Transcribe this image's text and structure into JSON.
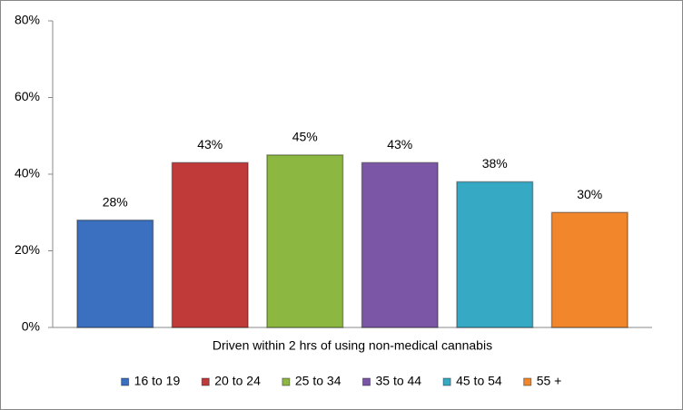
{
  "chart_data": {
    "type": "bar",
    "categories": [
      "Driven within 2 hrs of using non-medical cannabis"
    ],
    "series": [
      {
        "name": "16 to 19",
        "color": "#3b6fc0",
        "values": [
          28
        ],
        "value_labels": [
          "28%"
        ]
      },
      {
        "name": "20 to 24",
        "color": "#c13a3a",
        "values": [
          43
        ],
        "value_labels": [
          "43%"
        ]
      },
      {
        "name": "25 to 34",
        "color": "#8cb740",
        "values": [
          45
        ],
        "value_labels": [
          "45%"
        ]
      },
      {
        "name": "35 to 44",
        "color": "#7b56a6",
        "values": [
          43
        ],
        "value_labels": [
          "43%"
        ]
      },
      {
        "name": "45 to 54",
        "color": "#36a9c5",
        "values": [
          38
        ],
        "value_labels": [
          "38%"
        ]
      },
      {
        "name": "55 +",
        "color": "#f2862b",
        "values": [
          30
        ],
        "value_labels": [
          "30%"
        ]
      }
    ],
    "ylim": [
      0,
      80
    ],
    "yticks": [
      {
        "value": 0,
        "label": "0%"
      },
      {
        "value": 20,
        "label": "20%"
      },
      {
        "value": 40,
        "label": "40%"
      },
      {
        "value": 60,
        "label": "60%"
      },
      {
        "value": 80,
        "label": "80%"
      }
    ],
    "grid": false,
    "legend": "bottom"
  }
}
